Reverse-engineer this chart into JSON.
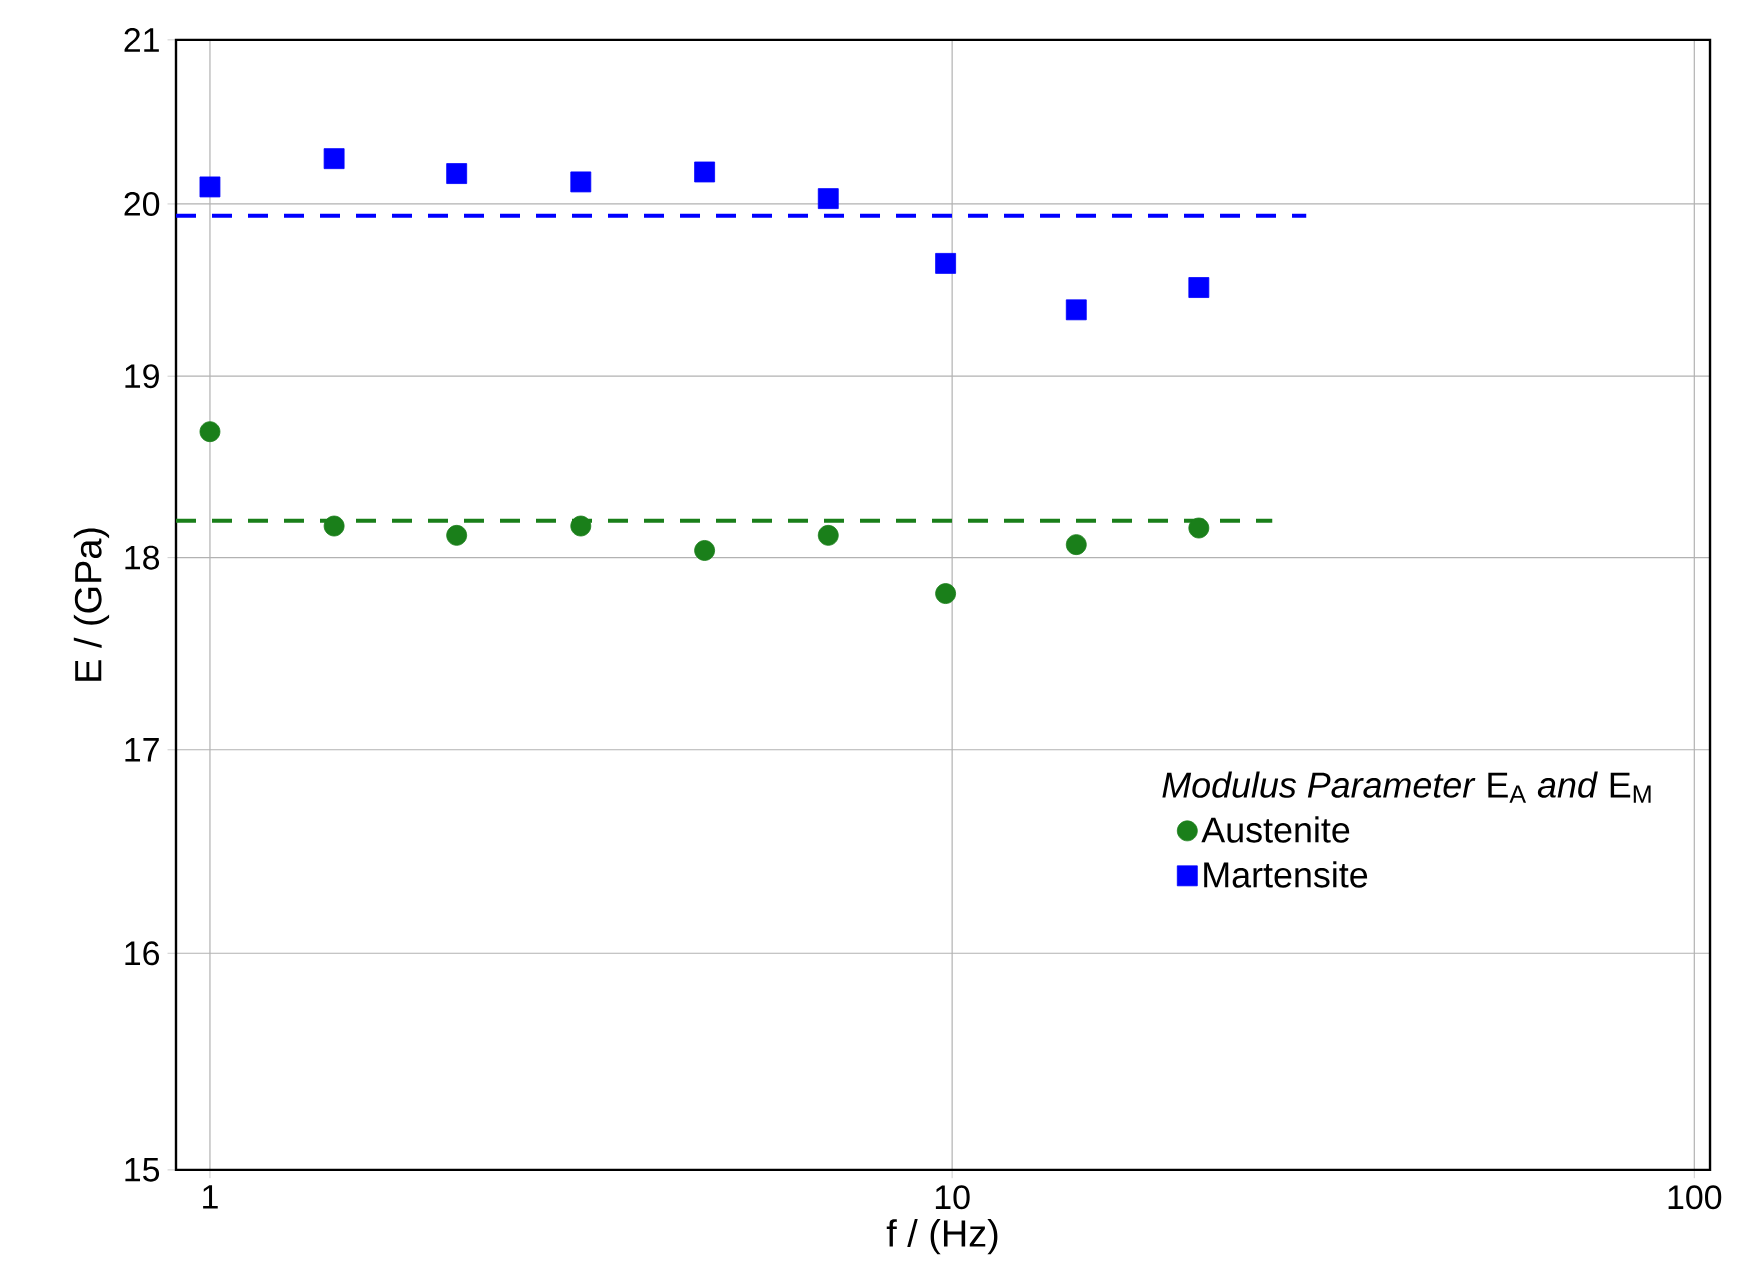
{
  "chart_data": {
    "type": "scatter",
    "xlabel": "f / (Hz)",
    "ylabel": "E / (GPa)",
    "legend_title": "*Modulus Parameter* E$_{A}$ *and* E$_{M}$",
    "log": "xy",
    "xlim": [
      0.9,
      105
    ],
    "xticks": [
      1,
      10,
      100
    ],
    "ylim": [
      15,
      21
    ],
    "yticks": [
      15,
      16,
      17,
      18,
      19,
      20,
      21
    ],
    "grid": true,
    "legend": "right",
    "series": [
      {
        "name": "Austenite",
        "color": "#1a7f1a",
        "marker": "circle",
        "x": [
          1,
          1.47,
          2.15,
          3.16,
          4.64,
          6.81,
          9.8,
          14.7,
          21.5
        ],
        "values": [
          18.69,
          18.17,
          18.12,
          18.17,
          18.04,
          18.12,
          17.81,
          18.07,
          18.16
        ]
      },
      {
        "name": "Martensite",
        "color": "#0000ff",
        "marker": "square",
        "x": [
          1,
          1.47,
          2.15,
          3.16,
          4.64,
          6.81,
          9.8,
          14.7,
          21.5
        ],
        "values": [
          20.1,
          20.27,
          20.18,
          20.13,
          20.19,
          20.03,
          19.65,
          19.38,
          19.51
        ]
      },
      {
        "type": "line",
        "color": "#1a7f1a",
        "marker": "none",
        "line_style": "dashed",
        "x": [
          0.9,
          27
        ],
        "values": [
          18.2,
          18.2
        ]
      },
      {
        "type": "line",
        "color": "#0000ff",
        "marker": "none",
        "line_style": "dashed",
        "x": [
          0.9,
          30
        ],
        "values": [
          19.93,
          19.93
        ]
      }
    ]
  }
}
